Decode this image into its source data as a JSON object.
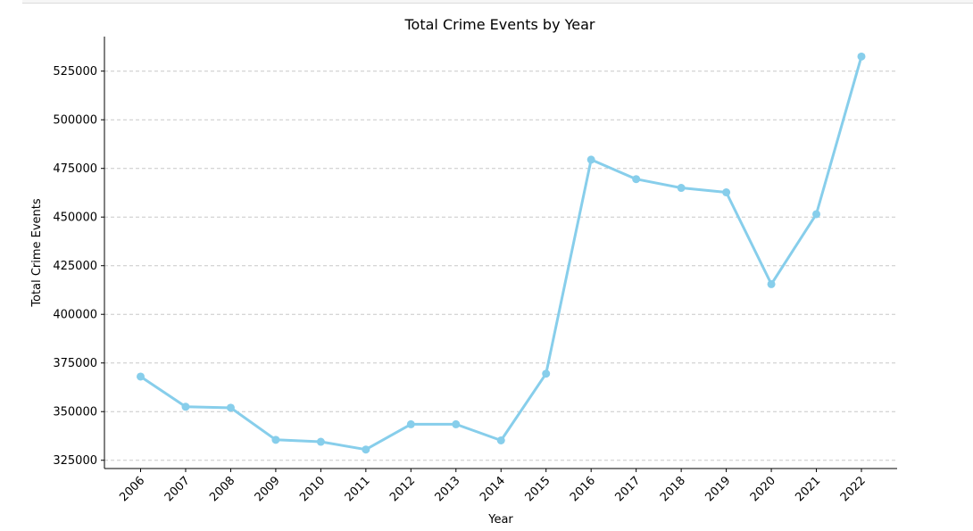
{
  "chart_data": {
    "type": "line",
    "title": "Total Crime Events by Year",
    "xlabel": "Year",
    "ylabel": "Total Crime Events",
    "categories": [
      "2006",
      "2007",
      "2008",
      "2009",
      "2010",
      "2011",
      "2012",
      "2013",
      "2014",
      "2015",
      "2016",
      "2017",
      "2018",
      "2019",
      "2020",
      "2021",
      "2022"
    ],
    "values": [
      368000,
      352500,
      352000,
      335500,
      334500,
      330500,
      343500,
      343500,
      335200,
      369500,
      479500,
      469500,
      465000,
      462700,
      415500,
      451500,
      532500
    ],
    "yticks": [
      325000,
      350000,
      375000,
      400000,
      425000,
      450000,
      475000,
      500000,
      525000
    ],
    "ytick_labels": [
      "325000",
      "350000",
      "375000",
      "400000",
      "425000",
      "450000",
      "475000",
      "500000",
      "525000"
    ],
    "ylim": [
      320750,
      542750
    ],
    "grid": "y-dashed",
    "color": "#87ceeb",
    "grid_color": "#c8c8c8"
  }
}
